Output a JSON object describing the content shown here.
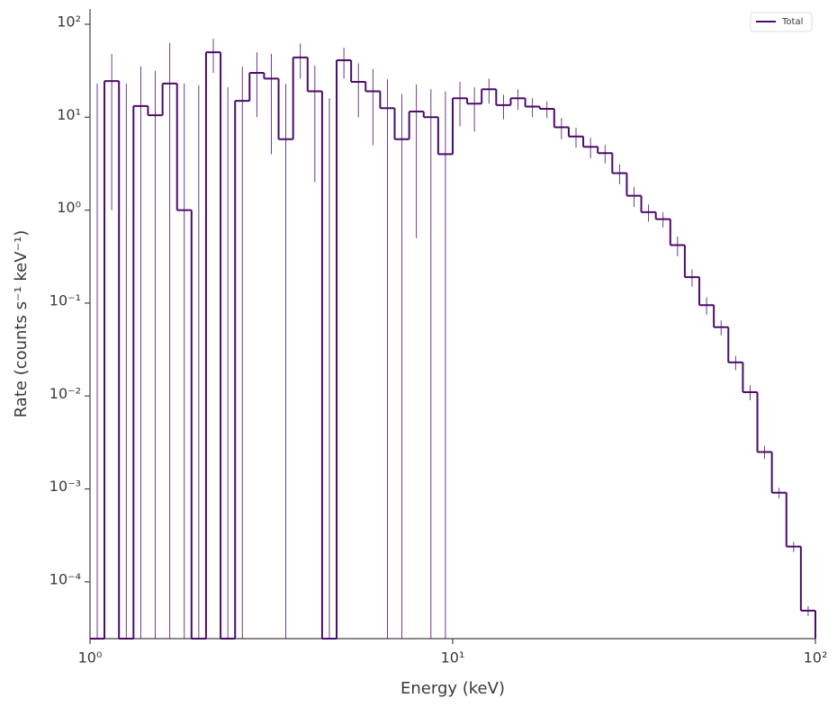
{
  "chart_data": {
    "type": "histogram",
    "xlabel": "Energy (keV)",
    "ylabel": "Rate (counts s⁻¹ keV⁻¹)",
    "xscale": "log",
    "yscale": "log",
    "xlim": [
      1,
      100
    ],
    "ylim": [
      2.45e-05,
      146
    ],
    "xticks": [
      {
        "value": 1,
        "label": "10⁰"
      },
      {
        "value": 10,
        "label": "10¹"
      },
      {
        "value": 100,
        "label": "10²"
      }
    ],
    "yticks": [
      {
        "value": 0.0001,
        "label": "10⁻⁴"
      },
      {
        "value": 0.001,
        "label": "10⁻³"
      },
      {
        "value": 0.01,
        "label": "10⁻²"
      },
      {
        "value": 0.1,
        "label": "10⁻¹"
      },
      {
        "value": 1,
        "label": "10⁰"
      },
      {
        "value": 10,
        "label": "10¹"
      },
      {
        "value": 100,
        "label": "10²"
      }
    ],
    "legend": "upper right",
    "bins": [
      1.0,
      1.096,
      1.202,
      1.318,
      1.445,
      1.585,
      1.738,
      1.905,
      2.089,
      2.291,
      2.512,
      2.754,
      3.02,
      3.311,
      3.631,
      3.981,
      4.365,
      4.786,
      5.248,
      5.754,
      6.31,
      6.918,
      7.586,
      8.318,
      9.12,
      10.0,
      10.96,
      12.02,
      13.18,
      14.45,
      15.85,
      17.38,
      19.05,
      20.89,
      22.91,
      25.12,
      27.54,
      30.2,
      33.11,
      36.31,
      39.81,
      43.65,
      47.86,
      52.48,
      57.54,
      63.1,
      69.18,
      75.86,
      83.18,
      91.2,
      100.0
    ],
    "series": [
      {
        "name": "Total",
        "color": "#4a0b6a",
        "values": [
          0,
          24.5,
          0,
          13.2,
          10.5,
          23,
          1.0,
          0,
          50,
          0,
          15,
          30,
          26,
          5.8,
          44,
          19,
          0,
          41,
          24,
          19,
          12.5,
          5.8,
          11.5,
          10,
          4.0,
          16,
          14,
          20,
          13.5,
          16,
          13,
          12.3,
          7.8,
          6.2,
          4.8,
          4.1,
          2.5,
          1.43,
          0.95,
          0.8,
          0.42,
          0.19,
          0.095,
          0.055,
          0.023,
          0.011,
          0.0025,
          0.00091,
          0.00024,
          4.9e-05
        ],
        "errors": [
          23,
          23.5,
          23,
          22,
          21,
          40,
          22,
          22,
          20,
          21,
          20,
          20,
          22,
          17,
          18,
          17,
          16,
          15,
          14,
          14,
          13,
          12,
          11,
          10,
          15,
          8,
          7,
          6,
          4,
          4,
          3,
          2.5,
          2,
          1.5,
          1.2,
          0.9,
          0.6,
          0.35,
          0.2,
          0.15,
          0.1,
          0.04,
          0.02,
          0.01,
          0.004,
          0.002,
          0.0004,
          0.00012,
          3e-05,
          6e-06
        ]
      }
    ]
  }
}
